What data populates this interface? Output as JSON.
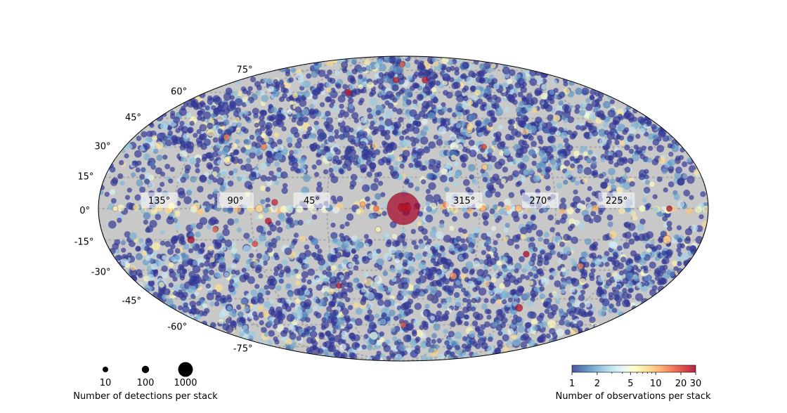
{
  "chart_data": {
    "type": "scatter",
    "projection": "mollweide",
    "title": "",
    "background_color": "#c8c8c8",
    "grid": true,
    "lat_ticks": [
      {
        "value": 75,
        "label": "75°"
      },
      {
        "value": 60,
        "label": "60°"
      },
      {
        "value": 45,
        "label": "45°"
      },
      {
        "value": 30,
        "label": "30°"
      },
      {
        "value": 15,
        "label": "15°"
      },
      {
        "value": 0,
        "label": "0°"
      },
      {
        "value": -15,
        "label": "-15°"
      },
      {
        "value": -30,
        "label": "-30°"
      },
      {
        "value": -45,
        "label": "-45°"
      },
      {
        "value": -60,
        "label": "-60°"
      },
      {
        "value": -75,
        "label": "-75°"
      }
    ],
    "lon_ticks": [
      {
        "value": 135,
        "label": "135°"
      },
      {
        "value": 90,
        "label": "90°"
      },
      {
        "value": 45,
        "label": "45°"
      },
      {
        "value": 315,
        "label": "315°"
      },
      {
        "value": 270,
        "label": "270°"
      },
      {
        "value": 225,
        "label": "225°"
      }
    ],
    "size_legend": {
      "title": "Number of detections per stack",
      "entries": [
        {
          "label": "10",
          "value": 10
        },
        {
          "label": "100",
          "value": 100
        },
        {
          "label": "1000",
          "value": 1000
        }
      ]
    },
    "colorbar": {
      "title": "Number of observations per stack",
      "scale": "log",
      "range": [
        1,
        30
      ],
      "colormap": "RdYlBu_r",
      "colors": [
        "#313695",
        "#4575b4",
        "#74add1",
        "#abd9e9",
        "#e0f3f8",
        "#ffffbf",
        "#fee090",
        "#fdae61",
        "#f46d43",
        "#d73027",
        "#a50026"
      ],
      "ticks": [
        {
          "label": "1",
          "value": 1
        },
        {
          "label": "2",
          "value": 2
        },
        {
          "label": "5",
          "value": 5
        },
        {
          "label": "10",
          "value": 10
        },
        {
          "label": "20",
          "value": 20
        },
        {
          "label": "30",
          "value": 30
        }
      ]
    },
    "highlighted_points": [
      {
        "l": 0,
        "b": 0,
        "detections": 3000,
        "observations": 30
      },
      {
        "l": 0.5,
        "b": 0.5,
        "detections": 180,
        "observations": 28
      },
      {
        "l": 358,
        "b": 0.3,
        "detections": 150,
        "observations": 26
      },
      {
        "l": 80,
        "b": -6,
        "detections": 30,
        "observations": 28
      },
      {
        "l": 128,
        "b": -15,
        "detections": 40,
        "observations": 30
      },
      {
        "l": 201,
        "b": -15,
        "detections": 120,
        "observations": 9
      },
      {
        "l": 76,
        "b": 3,
        "detections": 25,
        "observations": 25
      },
      {
        "l": 85,
        "b": 0,
        "detections": 80,
        "observations": 8
      },
      {
        "l": 313,
        "b": 0,
        "detections": 20,
        "observations": 12
      },
      {
        "l": 292,
        "b": 0,
        "detections": 40,
        "observations": 10
      },
      {
        "l": 310,
        "b": 20,
        "detections": 20,
        "observations": 9
      },
      {
        "l": 327,
        "b": -33,
        "detections": 40,
        "observations": 12
      },
      {
        "l": 284,
        "b": -22,
        "detections": 25,
        "observations": 30
      },
      {
        "l": 270,
        "b": -50,
        "detections": 50,
        "observations": 27
      },
      {
        "l": 336,
        "b": 68,
        "detections": 30,
        "observations": 28
      },
      {
        "l": 50,
        "b": 60,
        "detections": 30,
        "observations": 25
      },
      {
        "l": 90,
        "b": 30,
        "detections": 20,
        "observations": 14
      },
      {
        "l": 118,
        "b": 35,
        "detections": 25,
        "observations": 13
      },
      {
        "l": 8,
        "b": 68,
        "detections": 20,
        "observations": 26
      },
      {
        "l": 2,
        "b": 80,
        "detections": 15,
        "observations": 15
      },
      {
        "l": 255,
        "b": 37,
        "detections": 20,
        "observations": 3
      },
      {
        "l": 90,
        "b": -17,
        "detections": 18,
        "observations": 20
      },
      {
        "l": 112,
        "b": -10,
        "detections": 15,
        "observations": 15
      },
      {
        "l": 247,
        "b": -28,
        "detections": 20,
        "observations": 13
      },
      {
        "l": 0,
        "b": -60,
        "detections": 15,
        "observations": 17
      },
      {
        "l": 44,
        "b": -38,
        "detections": 15,
        "observations": 27
      },
      {
        "l": 308,
        "b": 30,
        "detections": 15,
        "observations": 20
      },
      {
        "l": 203,
        "b": 0,
        "detections": 18,
        "observations": 30
      },
      {
        "l": 24,
        "b": 2,
        "detections": 15,
        "observations": 12
      },
      {
        "l": 16,
        "b": 0,
        "detections": 15,
        "observations": 16
      },
      {
        "l": 335,
        "b": 2,
        "detections": 15,
        "observations": 14
      },
      {
        "l": 15,
        "b": -10,
        "detections": 20,
        "observations": 6
      },
      {
        "l": 170,
        "b": 0,
        "detections": 15,
        "observations": 6
      }
    ],
    "background_field": {
      "approx_sources": 4200,
      "dominant_observations": 1,
      "note_density": "higher at |b| > 20, sparse near galactic plane"
    }
  }
}
